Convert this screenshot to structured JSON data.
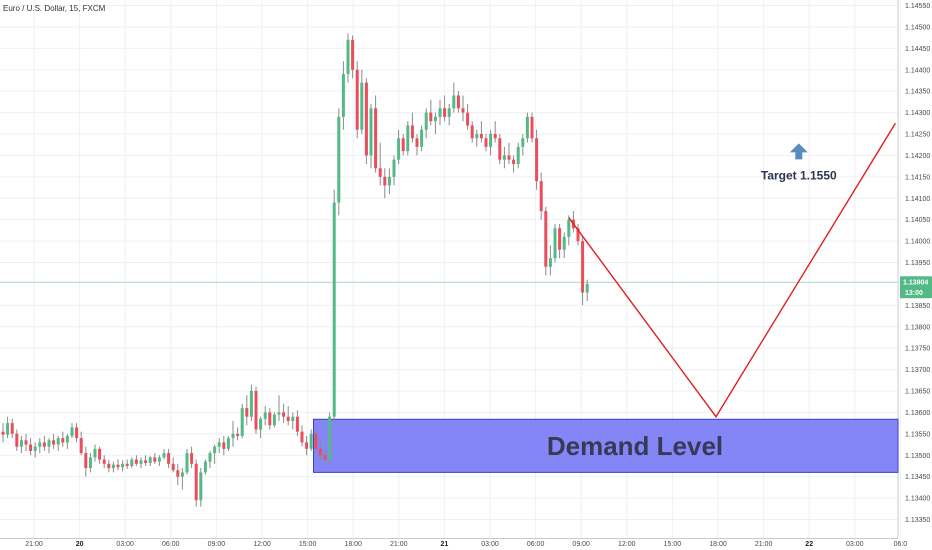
{
  "header": {
    "title": "Euro / U.S. Dollar, 15, FXCM"
  },
  "colors": {
    "up": "#53b987",
    "down": "#eb4d5c",
    "grid": "#eef0f3",
    "wick": "#8a8a8a",
    "zone_fill": "#6f71f5",
    "zone_stroke": "#3b3dd0",
    "projection": "#e02020",
    "arrow": "#5b8bbd",
    "price_tag": "#53b987",
    "current_line": "#a8d8bd"
  },
  "chart_data": {
    "type": "candlestick",
    "symbol": "EURUSD",
    "timeframe": "15",
    "ylim": [
      1.13325,
      1.14575
    ],
    "y_ticks": [
      "1.14550",
      "1.14500",
      "1.14450",
      "1.14400",
      "1.14350",
      "1.14300",
      "1.14250",
      "1.14200",
      "1.14150",
      "1.14100",
      "1.14050",
      "1.14000",
      "1.13950",
      "1.13904",
      "1.13850",
      "1.13800",
      "1.13750",
      "1.13700",
      "1.13650",
      "1.13600",
      "1.13550",
      "1.13500",
      "1.13450",
      "1.13400",
      "1.13350"
    ],
    "x_ticks": [
      {
        "label": "21:00",
        "bold": false
      },
      {
        "label": "20",
        "bold": true
      },
      {
        "label": "03:00",
        "bold": false
      },
      {
        "label": "06:00",
        "bold": false
      },
      {
        "label": "09:00",
        "bold": false
      },
      {
        "label": "12:00",
        "bold": false
      },
      {
        "label": "15:00",
        "bold": false
      },
      {
        "label": "18:00",
        "bold": false
      },
      {
        "label": "21:00",
        "bold": false
      },
      {
        "label": "21",
        "bold": true
      },
      {
        "label": "03:00",
        "bold": false
      },
      {
        "label": "06:00",
        "bold": false
      },
      {
        "label": "09:00",
        "bold": false
      },
      {
        "label": "12:00",
        "bold": false
      },
      {
        "label": "15:00",
        "bold": false
      },
      {
        "label": "18:00",
        "bold": false
      },
      {
        "label": "21:00",
        "bold": false
      },
      {
        "label": "22",
        "bold": true
      },
      {
        "label": "03:00",
        "bold": false
      },
      {
        "label": "06:0",
        "bold": false
      }
    ],
    "current_price": {
      "value": 1.13904,
      "label": "1.13904",
      "countdown": "13:00"
    },
    "candles": [
      [
        1.13555,
        1.13575,
        1.1353,
        1.13548
      ],
      [
        1.13548,
        1.1359,
        1.1354,
        1.13575
      ],
      [
        1.13575,
        1.13585,
        1.1354,
        1.1355
      ],
      [
        1.1355,
        1.1356,
        1.1351,
        1.1352
      ],
      [
        1.1352,
        1.13545,
        1.13505,
        1.13535
      ],
      [
        1.13535,
        1.1355,
        1.1351,
        1.13525
      ],
      [
        1.13525,
        1.1354,
        1.135,
        1.1351
      ],
      [
        1.1351,
        1.1353,
        1.13495,
        1.1352
      ],
      [
        1.1352,
        1.1354,
        1.13505,
        1.1353
      ],
      [
        1.1353,
        1.13545,
        1.1351,
        1.1352
      ],
      [
        1.1352,
        1.1354,
        1.13505,
        1.13535
      ],
      [
        1.13535,
        1.1355,
        1.13515,
        1.13525
      ],
      [
        1.13525,
        1.13545,
        1.1351,
        1.1354
      ],
      [
        1.1354,
        1.13555,
        1.1352,
        1.1353
      ],
      [
        1.1353,
        1.1355,
        1.13515,
        1.13545
      ],
      [
        1.13545,
        1.13575,
        1.1354,
        1.13565
      ],
      [
        1.13565,
        1.13575,
        1.1353,
        1.1354
      ],
      [
        1.1354,
        1.13555,
        1.135,
        1.13505
      ],
      [
        1.13505,
        1.1352,
        1.1345,
        1.1347
      ],
      [
        1.1347,
        1.13505,
        1.1346,
        1.13495
      ],
      [
        1.13495,
        1.13525,
        1.13485,
        1.13515
      ],
      [
        1.13515,
        1.1352,
        1.1348,
        1.1349
      ],
      [
        1.1349,
        1.135,
        1.1347,
        1.1348
      ],
      [
        1.1348,
        1.1349,
        1.1346,
        1.1347
      ],
      [
        1.1347,
        1.13485,
        1.1346,
        1.13478
      ],
      [
        1.13478,
        1.1349,
        1.13465,
        1.13472
      ],
      [
        1.13472,
        1.13488,
        1.13462,
        1.1348
      ],
      [
        1.1348,
        1.1349,
        1.13468,
        1.13475
      ],
      [
        1.13475,
        1.13495,
        1.1347,
        1.1349
      ],
      [
        1.1349,
        1.135,
        1.13475,
        1.1348
      ],
      [
        1.1348,
        1.13495,
        1.1347,
        1.13488
      ],
      [
        1.13488,
        1.135,
        1.13475,
        1.13482
      ],
      [
        1.13482,
        1.13498,
        1.13475,
        1.13495
      ],
      [
        1.13495,
        1.13505,
        1.1348,
        1.13485
      ],
      [
        1.13485,
        1.135,
        1.13475,
        1.13495
      ],
      [
        1.13495,
        1.13515,
        1.1349,
        1.13505
      ],
      [
        1.13505,
        1.13515,
        1.1347,
        1.1348
      ],
      [
        1.1348,
        1.13495,
        1.1346,
        1.13465
      ],
      [
        1.13465,
        1.1348,
        1.1343,
        1.1345
      ],
      [
        1.1345,
        1.1347,
        1.1342,
        1.1346
      ],
      [
        1.1346,
        1.13515,
        1.13455,
        1.13505
      ],
      [
        1.13505,
        1.1352,
        1.1347,
        1.1348
      ],
      [
        1.1348,
        1.1349,
        1.1338,
        1.13395
      ],
      [
        1.13395,
        1.1347,
        1.1338,
        1.1346
      ],
      [
        1.1346,
        1.1349,
        1.13455,
        1.13485
      ],
      [
        1.13485,
        1.1351,
        1.1347,
        1.13505
      ],
      [
        1.13505,
        1.13525,
        1.1348,
        1.1352
      ],
      [
        1.1352,
        1.1354,
        1.13505,
        1.1353
      ],
      [
        1.1353,
        1.13545,
        1.135,
        1.13515
      ],
      [
        1.13515,
        1.13545,
        1.1351,
        1.1354
      ],
      [
        1.1354,
        1.1358,
        1.1352,
        1.1355
      ],
      [
        1.1355,
        1.13565,
        1.13535,
        1.13545
      ],
      [
        1.13545,
        1.1362,
        1.1354,
        1.1361
      ],
      [
        1.1361,
        1.1364,
        1.1357,
        1.1359
      ],
      [
        1.1359,
        1.13665,
        1.1358,
        1.1365
      ],
      [
        1.1365,
        1.1366,
        1.1355,
        1.1356
      ],
      [
        1.1356,
        1.1359,
        1.1354,
        1.13585
      ],
      [
        1.13585,
        1.13615,
        1.1357,
        1.136
      ],
      [
        1.136,
        1.1361,
        1.1356,
        1.1357
      ],
      [
        1.1357,
        1.136,
        1.13565,
        1.13595
      ],
      [
        1.13595,
        1.1364,
        1.1358,
        1.136
      ],
      [
        1.136,
        1.1362,
        1.13575,
        1.1359
      ],
      [
        1.1359,
        1.13615,
        1.1357,
        1.1358
      ],
      [
        1.1358,
        1.136,
        1.1356,
        1.1359
      ],
      [
        1.1359,
        1.13605,
        1.13545,
        1.13555
      ],
      [
        1.13555,
        1.1357,
        1.1352,
        1.1353
      ],
      [
        1.1353,
        1.13545,
        1.135,
        1.13515
      ],
      [
        1.13515,
        1.1356,
        1.1351,
        1.1355
      ],
      [
        1.1355,
        1.1356,
        1.13505,
        1.13515
      ],
      [
        1.13515,
        1.1353,
        1.1349,
        1.135
      ],
      [
        1.135,
        1.1351,
        1.1348,
        1.1349
      ],
      [
        1.1349,
        1.136,
        1.1348,
        1.1359
      ],
      [
        1.1359,
        1.1412,
        1.1358,
        1.1409
      ],
      [
        1.1409,
        1.1431,
        1.1406,
        1.1429
      ],
      [
        1.1429,
        1.1442,
        1.1426,
        1.1439
      ],
      [
        1.1439,
        1.14485,
        1.1437,
        1.1447
      ],
      [
        1.1447,
        1.1448,
        1.1438,
        1.144
      ],
      [
        1.144,
        1.1442,
        1.1424,
        1.1426
      ],
      [
        1.1426,
        1.144,
        1.1425,
        1.1437
      ],
      [
        1.1437,
        1.1438,
        1.1418,
        1.142
      ],
      [
        1.142,
        1.1432,
        1.1417,
        1.1431
      ],
      [
        1.1431,
        1.1434,
        1.1416,
        1.1417
      ],
      [
        1.1417,
        1.1423,
        1.1413,
        1.1415
      ],
      [
        1.1415,
        1.1417,
        1.141,
        1.1413
      ],
      [
        1.1413,
        1.1417,
        1.1411,
        1.1415
      ],
      [
        1.1415,
        1.142,
        1.1413,
        1.1419
      ],
      [
        1.1419,
        1.1426,
        1.1418,
        1.1424
      ],
      [
        1.1424,
        1.1425,
        1.142,
        1.1421
      ],
      [
        1.1421,
        1.1428,
        1.142,
        1.1427
      ],
      [
        1.1427,
        1.143,
        1.1423,
        1.1424
      ],
      [
        1.1424,
        1.1425,
        1.142,
        1.1422
      ],
      [
        1.1422,
        1.1427,
        1.1421,
        1.1426
      ],
      [
        1.1426,
        1.1431,
        1.1424,
        1.143
      ],
      [
        1.143,
        1.1433,
        1.1427,
        1.1428
      ],
      [
        1.1428,
        1.143,
        1.1425,
        1.1429
      ],
      [
        1.1429,
        1.1433,
        1.1427,
        1.1431
      ],
      [
        1.1431,
        1.1434,
        1.1428,
        1.1429
      ],
      [
        1.1429,
        1.1432,
        1.1427,
        1.1431
      ],
      [
        1.1431,
        1.1437,
        1.143,
        1.1434
      ],
      [
        1.1434,
        1.1435,
        1.143,
        1.1431
      ],
      [
        1.1431,
        1.1434,
        1.1428,
        1.143
      ],
      [
        1.143,
        1.1432,
        1.1426,
        1.1427
      ],
      [
        1.1427,
        1.1428,
        1.1423,
        1.1424
      ],
      [
        1.1424,
        1.1426,
        1.1422,
        1.1425
      ],
      [
        1.1425,
        1.1428,
        1.1423,
        1.1424
      ],
      [
        1.1424,
        1.1425,
        1.1421,
        1.1422
      ],
      [
        1.1422,
        1.1426,
        1.142,
        1.1425
      ],
      [
        1.1425,
        1.1428,
        1.1423,
        1.1424
      ],
      [
        1.1424,
        1.1425,
        1.1418,
        1.1419
      ],
      [
        1.1419,
        1.1422,
        1.1417,
        1.142
      ],
      [
        1.142,
        1.1423,
        1.1418,
        1.1419
      ],
      [
        1.1419,
        1.142,
        1.1416,
        1.1418
      ],
      [
        1.1418,
        1.1423,
        1.1417,
        1.1422
      ],
      [
        1.1422,
        1.1425,
        1.142,
        1.1424
      ],
      [
        1.1424,
        1.143,
        1.1423,
        1.1429
      ],
      [
        1.1429,
        1.143,
        1.1423,
        1.1424
      ],
      [
        1.1424,
        1.1426,
        1.1412,
        1.1414
      ],
      [
        1.1414,
        1.1416,
        1.1405,
        1.1407
      ],
      [
        1.1407,
        1.1408,
        1.1392,
        1.1394
      ],
      [
        1.1394,
        1.1399,
        1.1392,
        1.1396
      ],
      [
        1.1396,
        1.1404,
        1.1395,
        1.1403
      ],
      [
        1.1403,
        1.1404,
        1.1396,
        1.1398
      ],
      [
        1.1398,
        1.1402,
        1.1396,
        1.1401
      ],
      [
        1.1401,
        1.1406,
        1.1399,
        1.1405
      ],
      [
        1.1405,
        1.1407,
        1.1402,
        1.1403
      ],
      [
        1.1403,
        1.1404,
        1.1399,
        1.14
      ],
      [
        1.14,
        1.1401,
        1.1385,
        1.1388
      ],
      [
        1.1388,
        1.1391,
        1.1386,
        1.139
      ]
    ],
    "demand_zone": {
      "label": "Demand Level",
      "y_top": 1.13584,
      "y_bottom": 1.1346
    },
    "projection": [
      {
        "bar": 123,
        "price": 1.14055
      },
      {
        "bar": 155,
        "price": 1.1359
      },
      {
        "bar": 194,
        "price": 1.14275
      }
    ],
    "target": {
      "label": "Target 1.1550",
      "bar": 173,
      "price": 1.142
    }
  }
}
